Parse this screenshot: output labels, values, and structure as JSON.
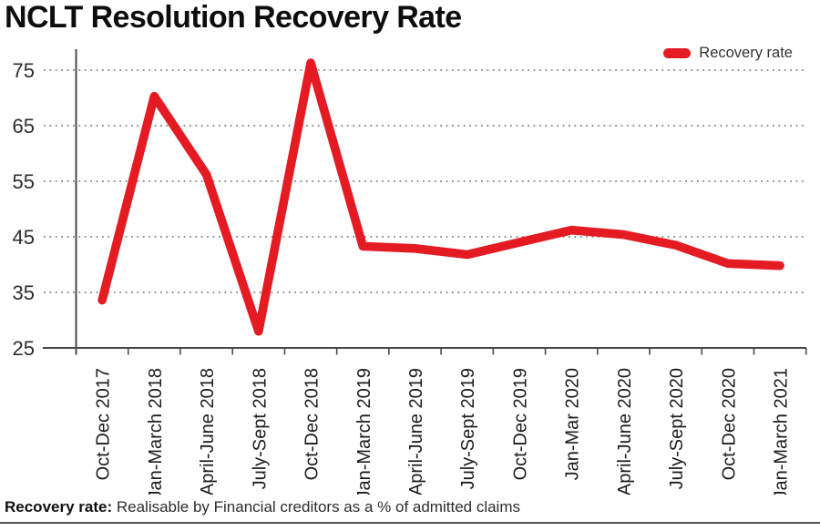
{
  "title": "NCLT Resolution Recovery Rate",
  "legend": {
    "label": "Recovery rate",
    "color": "#e41b23"
  },
  "footnote": {
    "term": "Recovery rate:",
    "text": "Realisable by Financial creditors as a % of admitted claims"
  },
  "colors": {
    "line": "#e41b23",
    "axis": "#4a4a4a",
    "grid_dots": "#6e6e6e",
    "ytick_text": "#2e2e2e",
    "xtick_text": "#1c1c1c"
  },
  "chart_data": {
    "type": "line",
    "title": "NCLT Resolution Recovery Rate",
    "xlabel": "",
    "ylabel": "",
    "categories": [
      "Oct-Dec 2017",
      "Jan-March 2018",
      "April-June 2018",
      "July-Sept 2018",
      "Oct-Dec 2018",
      "Jan-March 2019",
      "April-June 2019",
      "July-Sept 2019",
      "Oct-Dec 2019",
      "Jan-Mar 2020",
      "April-June 2020",
      "July-Sept 2020",
      "Oct-Dec 2020",
      "Jan-March 2021"
    ],
    "series": [
      {
        "name": "Recovery rate",
        "values": [
          33.6,
          70.3,
          56.2,
          28.0,
          76.3,
          43.3,
          42.9,
          41.8,
          44.0,
          46.2,
          45.4,
          43.5,
          40.2,
          39.8
        ]
      }
    ],
    "yticks": [
      75,
      65,
      55,
      45,
      35,
      25
    ],
    "ylim": [
      25,
      78
    ],
    "grid": "horizontal-dotted",
    "legend_position": "top-right",
    "units": "% of admitted claims"
  }
}
